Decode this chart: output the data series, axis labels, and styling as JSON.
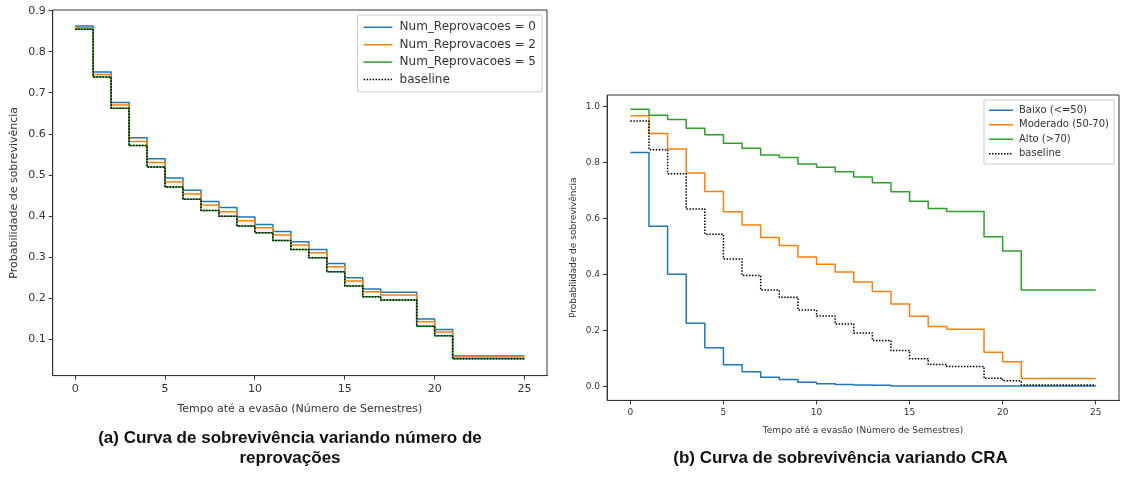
{
  "chart_data": [
    {
      "type": "step",
      "title": "(a)  Curva de sobrevivência variando número de reprovações",
      "xlabel": "Tempo até a evasão (Número de Semestres)",
      "ylabel": "Probabilidade de sobrevivência",
      "x": [
        0,
        1,
        2,
        3,
        4,
        5,
        6,
        7,
        8,
        9,
        10,
        11,
        12,
        13,
        14,
        15,
        16,
        17,
        18,
        19,
        20,
        21,
        22,
        23,
        24,
        25
      ],
      "series": [
        {
          "name": "Num_Reprovacoes = 0",
          "color": "#1f77b4",
          "values": [
            0.863,
            0.751,
            0.677,
            0.591,
            0.54,
            0.493,
            0.463,
            0.436,
            0.421,
            0.398,
            0.38,
            0.363,
            0.338,
            0.319,
            0.285,
            0.25,
            0.223,
            0.215,
            0.215,
            0.15,
            0.124,
            0.06,
            0.06,
            0.06,
            0.06,
            0.06
          ]
        },
        {
          "name": "Num_Reprovacoes = 2",
          "color": "#ff7f0e",
          "values": [
            0.859,
            0.745,
            0.671,
            0.582,
            0.531,
            0.483,
            0.454,
            0.427,
            0.411,
            0.389,
            0.372,
            0.354,
            0.33,
            0.311,
            0.277,
            0.242,
            0.216,
            0.208,
            0.208,
            0.143,
            0.118,
            0.057,
            0.057,
            0.057,
            0.057,
            0.057
          ]
        },
        {
          "name": "Num_Reprovacoes = 5",
          "color": "#2ca02c",
          "values": [
            0.855,
            0.739,
            0.663,
            0.572,
            0.52,
            0.471,
            0.441,
            0.414,
            0.4,
            0.376,
            0.36,
            0.341,
            0.319,
            0.299,
            0.265,
            0.23,
            0.204,
            0.196,
            0.196,
            0.132,
            0.109,
            0.053,
            0.053,
            0.053,
            0.053,
            0.053
          ]
        },
        {
          "name": "baseline",
          "color": "#000000",
          "line_style": "dotted",
          "values": [
            0.855,
            0.739,
            0.663,
            0.572,
            0.52,
            0.471,
            0.441,
            0.414,
            0.4,
            0.376,
            0.36,
            0.341,
            0.319,
            0.299,
            0.265,
            0.23,
            0.204,
            0.196,
            0.196,
            0.132,
            0.109,
            0.053,
            0.053,
            0.053,
            0.053,
            0.053
          ]
        }
      ],
      "xlim": [
        -1.25,
        26.25
      ],
      "xticks": [
        0,
        5,
        10,
        15,
        20,
        25
      ],
      "ylim": [
        0.012,
        0.902
      ],
      "yticks": [
        0.1,
        0.2,
        0.3,
        0.4,
        0.5,
        0.6,
        0.7,
        0.8,
        0.9
      ],
      "grid": false,
      "legend": "top right",
      "marker": "none",
      "line_style": "solid"
    },
    {
      "type": "step",
      "title": "(b) Curva de sobrevivência variando CRA",
      "xlabel": "Tempo até a evasão (Número de Semestres)",
      "ylabel": "Probabilidade de sobrevivência",
      "x": [
        0,
        1,
        2,
        3,
        4,
        5,
        6,
        7,
        8,
        9,
        10,
        11,
        12,
        13,
        14,
        15,
        16,
        17,
        18,
        19,
        20,
        21,
        22,
        23,
        24,
        25
      ],
      "series": [
        {
          "name": "Baixo (<=50)",
          "color": "#1f77b4",
          "values": [
            0.835,
            0.572,
            0.4,
            0.225,
            0.138,
            0.077,
            0.052,
            0.033,
            0.025,
            0.015,
            0.009,
            0.007,
            0.005,
            0.004,
            0.001,
            0.001,
            0.001,
            0.001,
            0.001,
            0.001,
            0.001,
            0.001,
            0.001,
            0.001,
            0.001,
            0.001
          ]
        },
        {
          "name": "Moderado (50-70)",
          "color": "#ff7f0e",
          "values": [
            0.966,
            0.903,
            0.847,
            0.762,
            0.696,
            0.623,
            0.576,
            0.531,
            0.503,
            0.462,
            0.436,
            0.408,
            0.373,
            0.339,
            0.294,
            0.25,
            0.214,
            0.204,
            0.204,
            0.122,
            0.088,
            0.028,
            0.028,
            0.028,
            0.028,
            0.028
          ]
        },
        {
          "name": "Alto (>70)",
          "color": "#2ca02c",
          "values": [
            0.989,
            0.968,
            0.953,
            0.921,
            0.898,
            0.868,
            0.85,
            0.826,
            0.817,
            0.794,
            0.782,
            0.766,
            0.747,
            0.727,
            0.695,
            0.661,
            0.635,
            0.624,
            0.624,
            0.534,
            0.483,
            0.344,
            0.344,
            0.344,
            0.344,
            0.344
          ]
        },
        {
          "name": "baseline",
          "color": "#000000",
          "line_style": "dotted",
          "values": [
            0.947,
            0.845,
            0.759,
            0.633,
            0.543,
            0.455,
            0.396,
            0.344,
            0.318,
            0.273,
            0.251,
            0.223,
            0.191,
            0.164,
            0.128,
            0.099,
            0.078,
            0.071,
            0.071,
            0.029,
            0.02,
            0.005,
            0.005,
            0.005,
            0.005,
            0.005
          ]
        }
      ],
      "xlim": [
        -1.25,
        26.25
      ],
      "xticks": [
        0,
        5,
        10,
        15,
        20,
        25
      ],
      "ylim": [
        -0.05,
        1.04
      ],
      "yticks": [
        {
          "value": 0,
          "label": "0.0"
        },
        0.2,
        0.4,
        0.6,
        0.8,
        {
          "value": 1,
          "label": "1.0"
        }
      ],
      "grid": false,
      "legend": "top right",
      "marker": "none",
      "line_style": "solid"
    }
  ]
}
